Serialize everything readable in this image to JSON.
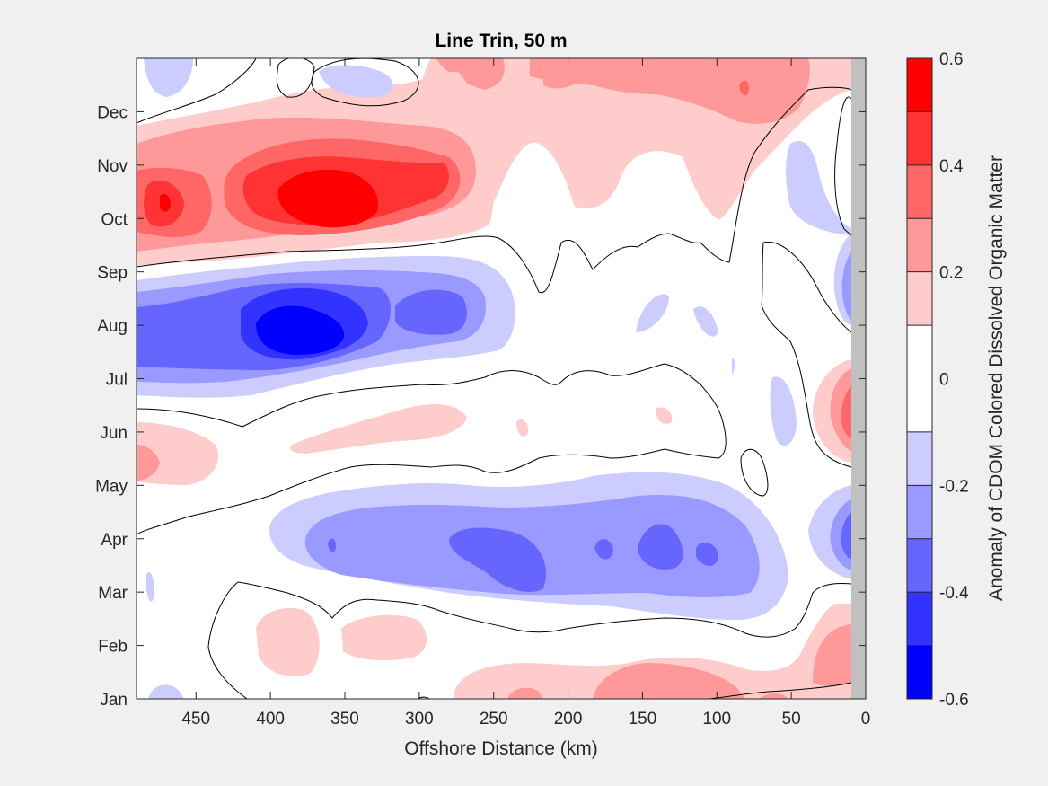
{
  "chart_data": {
    "type": "heatmap",
    "title": "Line Trin, 50 m",
    "xlabel": "Offshore Distance (km)",
    "ylabel": "",
    "x_reversed": true,
    "xlim": [
      0,
      490
    ],
    "x_ticks": [
      450,
      400,
      350,
      300,
      250,
      200,
      150,
      100,
      50,
      0
    ],
    "y_ticks": [
      "Jan",
      "Feb",
      "Mar",
      "Apr",
      "May",
      "Jun",
      "Jul",
      "Aug",
      "Sep",
      "Oct",
      "Nov",
      "Dec"
    ],
    "colorbar": {
      "label": "Anomaly of CDOM Colored Dissolved Organic Matter",
      "ticks": [
        "0.6",
        "0.4",
        "0.2",
        "0",
        "-0.2",
        "-0.4",
        "-0.6"
      ],
      "levels": [
        {
          "range": [
            0.5,
            0.6
          ],
          "color": "#ff0000"
        },
        {
          "range": [
            0.4,
            0.5
          ],
          "color": "#ff3333"
        },
        {
          "range": [
            0.3,
            0.4
          ],
          "color": "#ff6666"
        },
        {
          "range": [
            0.2,
            0.3
          ],
          "color": "#ff9999"
        },
        {
          "range": [
            0.1,
            0.2
          ],
          "color": "#ffcccc"
        },
        {
          "range": [
            -0.1,
            0.1
          ],
          "color": "#ffffff"
        },
        {
          "range": [
            -0.2,
            -0.1
          ],
          "color": "#ccccff"
        },
        {
          "range": [
            -0.3,
            -0.2
          ],
          "color": "#9999ff"
        },
        {
          "range": [
            -0.4,
            -0.3
          ],
          "color": "#6666ff"
        },
        {
          "range": [
            -0.5,
            -0.4
          ],
          "color": "#3333ff"
        },
        {
          "range": [
            -0.6,
            -0.5
          ],
          "color": "#0000ff"
        }
      ]
    },
    "anomaly_features": [
      {
        "month": "Oct–Nov",
        "x_km": [
          300,
          490
        ],
        "peak": 0.55,
        "sign": "positive"
      },
      {
        "month": "Dec",
        "x_km": [
          20,
          250
        ],
        "peak": 0.35,
        "sign": "positive"
      },
      {
        "month": "Aug",
        "x_km": [
          270,
          490
        ],
        "peak": -0.6,
        "sign": "negative"
      },
      {
        "month": "Apr",
        "x_km": [
          90,
          360
        ],
        "peak": -0.4,
        "sign": "negative"
      },
      {
        "month": "Jun",
        "x_km": [
          0,
          20
        ],
        "peak": 0.35,
        "sign": "positive"
      },
      {
        "month": "Jan–Feb",
        "x_km": [
          50,
          250
        ],
        "peak": 0.25,
        "sign": "positive"
      }
    ]
  }
}
